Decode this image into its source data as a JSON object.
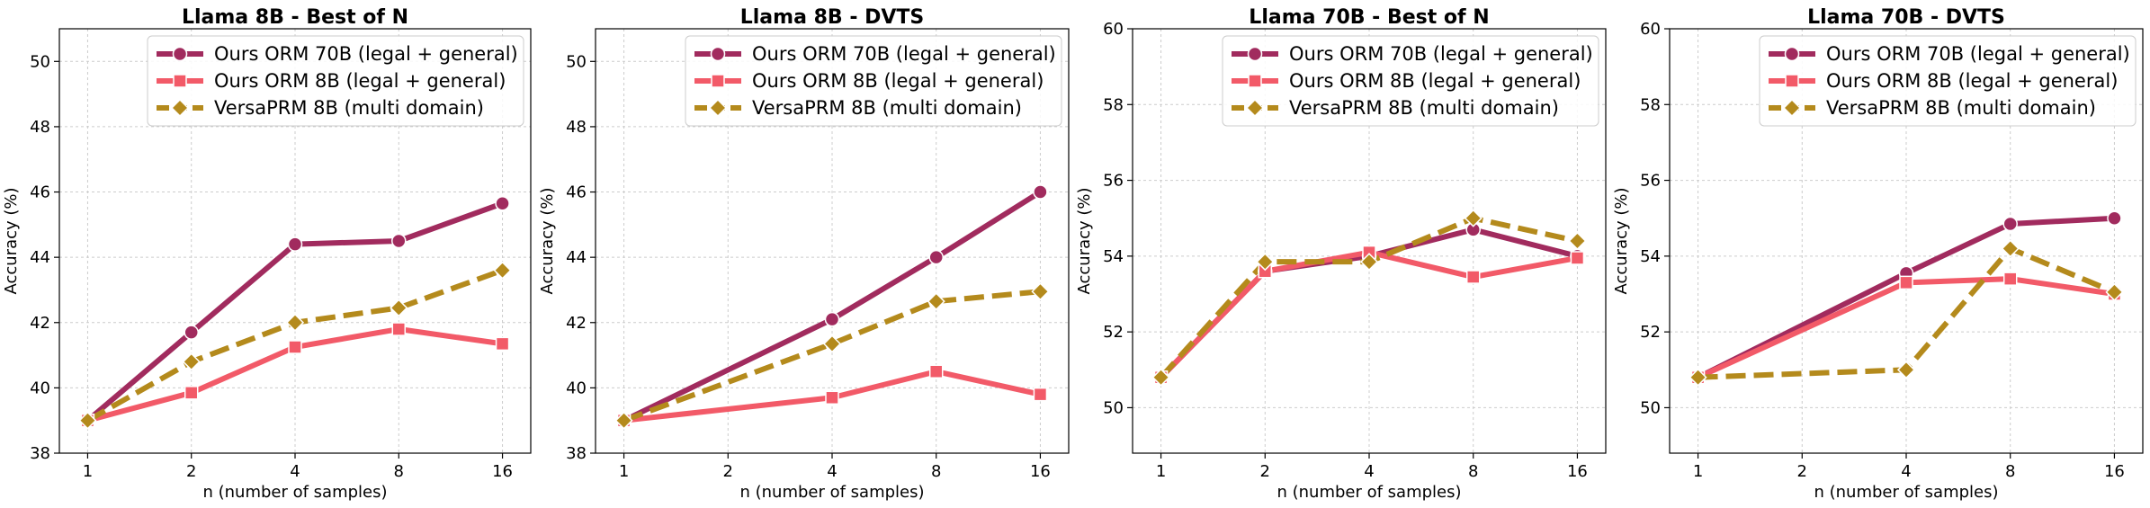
{
  "chart_data": [
    {
      "type": "line",
      "title": "Llama 8B - Best of N",
      "xlabel": "n (number of samples)",
      "ylabel": "Accuracy (%)",
      "categories": [
        "1",
        "2",
        "4",
        "8",
        "16"
      ],
      "ylim": [
        38,
        51
      ],
      "yticks": [
        38,
        40,
        42,
        44,
        46,
        48,
        50
      ],
      "grid": true,
      "legend_position": "top-right",
      "series": [
        {
          "name": "Ours ORM 70B (legal + general)",
          "color": "#A12B5E",
          "marker": "circle",
          "dash": "solid",
          "values": [
            39.0,
            41.7,
            44.4,
            44.5,
            45.65
          ]
        },
        {
          "name": "Ours ORM 8B (legal + general)",
          "color": "#F25A68",
          "marker": "square",
          "dash": "solid",
          "values": [
            39.0,
            39.85,
            41.25,
            41.8,
            41.35
          ]
        },
        {
          "name": "VersaPRM 8B (multi domain)",
          "color": "#B48A1C",
          "marker": "diamond",
          "dash": "dashed",
          "values": [
            39.0,
            40.8,
            42.0,
            42.45,
            43.6
          ]
        }
      ]
    },
    {
      "type": "line",
      "title": "Llama 8B - DVTS",
      "xlabel": "n (number of samples)",
      "ylabel": "Accuracy (%)",
      "categories": [
        "1",
        "2",
        "4",
        "8",
        "16"
      ],
      "ylim": [
        38,
        51
      ],
      "yticks": [
        38,
        40,
        42,
        44,
        46,
        48,
        50
      ],
      "grid": true,
      "legend_position": "top-right",
      "series": [
        {
          "name": "Ours ORM 70B (legal + general)",
          "color": "#A12B5E",
          "marker": "circle",
          "dash": "solid",
          "values": [
            39.0,
            null,
            42.1,
            44.0,
            46.0
          ]
        },
        {
          "name": "Ours ORM 8B (legal + general)",
          "color": "#F25A68",
          "marker": "square",
          "dash": "solid",
          "values": [
            39.0,
            null,
            39.7,
            40.5,
            39.8
          ]
        },
        {
          "name": "VersaPRM 8B (multi domain)",
          "color": "#B48A1C",
          "marker": "diamond",
          "dash": "dashed",
          "values": [
            39.0,
            null,
            41.35,
            42.65,
            42.95
          ]
        }
      ]
    },
    {
      "type": "line",
      "title": "Llama 70B - Best of N",
      "xlabel": "n (number of samples)",
      "ylabel": "Accuracy (%)",
      "categories": [
        "1",
        "2",
        "4",
        "8",
        "16"
      ],
      "ylim": [
        48.8,
        60
      ],
      "yticks": [
        50,
        52,
        54,
        56,
        58,
        60
      ],
      "grid": true,
      "legend_position": "top-right",
      "series": [
        {
          "name": "Ours ORM 70B (legal + general)",
          "color": "#A12B5E",
          "marker": "circle",
          "dash": "solid",
          "values": [
            50.8,
            53.6,
            54.0,
            54.7,
            54.0
          ]
        },
        {
          "name": "Ours ORM 8B (legal + general)",
          "color": "#F25A68",
          "marker": "square",
          "dash": "solid",
          "values": [
            50.8,
            53.6,
            54.1,
            53.45,
            53.95
          ]
        },
        {
          "name": "VersaPRM 8B (multi domain)",
          "color": "#B48A1C",
          "marker": "diamond",
          "dash": "dashed",
          "values": [
            50.8,
            53.85,
            53.85,
            55.0,
            54.4
          ]
        }
      ]
    },
    {
      "type": "line",
      "title": "Llama 70B - DVTS",
      "xlabel": "n (number of samples)",
      "ylabel": "Accuracy (%)",
      "categories": [
        "1",
        "2",
        "4",
        "8",
        "16"
      ],
      "ylim": [
        48.8,
        60
      ],
      "yticks": [
        50,
        52,
        54,
        56,
        58,
        60
      ],
      "grid": true,
      "legend_position": "top-right",
      "series": [
        {
          "name": "Ours ORM 70B (legal + general)",
          "color": "#A12B5E",
          "marker": "circle",
          "dash": "solid",
          "values": [
            50.8,
            null,
            53.55,
            54.85,
            55.0
          ]
        },
        {
          "name": "Ours ORM 8B (legal + general)",
          "color": "#F25A68",
          "marker": "square",
          "dash": "solid",
          "values": [
            50.8,
            null,
            53.3,
            53.4,
            53.0
          ]
        },
        {
          "name": "VersaPRM 8B (multi domain)",
          "color": "#B48A1C",
          "marker": "diamond",
          "dash": "dashed",
          "values": [
            50.8,
            null,
            51.0,
            54.2,
            53.05
          ]
        }
      ]
    }
  ]
}
